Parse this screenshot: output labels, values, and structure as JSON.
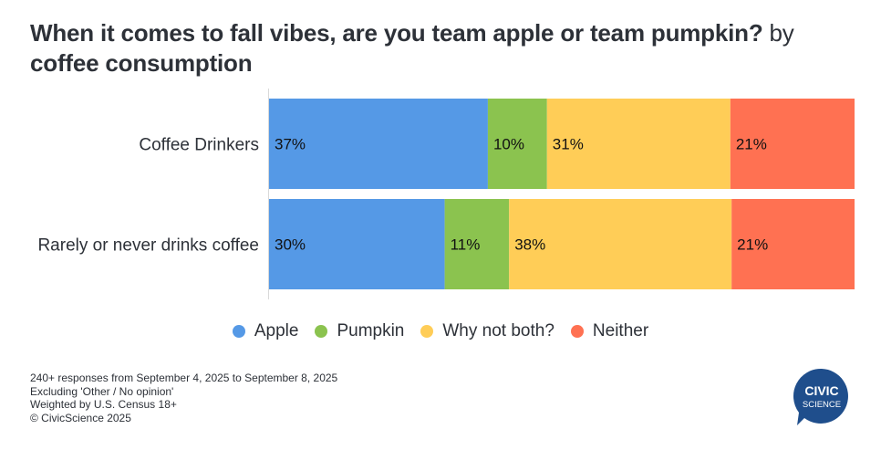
{
  "title": {
    "bold": "When it comes to fall vibes, are you team apple or team pumpkin?",
    "normal": " by",
    "line2": "coffee consumption"
  },
  "chart_data": {
    "type": "bar",
    "orientation": "horizontal-stacked-100",
    "categories": [
      "Coffee Drinkers",
      "Rarely or never drinks coffee"
    ],
    "series": [
      {
        "name": "Apple",
        "values": [
          37,
          30
        ],
        "color": "#5599e6"
      },
      {
        "name": "Pumpkin",
        "values": [
          10,
          11
        ],
        "color": "#8bc34f"
      },
      {
        "name": "Why not both?",
        "values": [
          31,
          38
        ],
        "color": "#ffcd57"
      },
      {
        "name": "Neither",
        "values": [
          21,
          21
        ],
        "color": "#ff7152"
      }
    ],
    "value_suffix": "%",
    "legend_position": "bottom-center"
  },
  "footnotes": [
    "240+ responses from September 4, 2025 to September 8, 2025",
    "Excluding 'Other / No opinion'",
    "Weighted by U.S. Census 18+",
    "© CivicScience 2025"
  ],
  "logo": {
    "line1": "CIVIC",
    "line2": "SCIENCE",
    "color": "#1f4e8c"
  }
}
